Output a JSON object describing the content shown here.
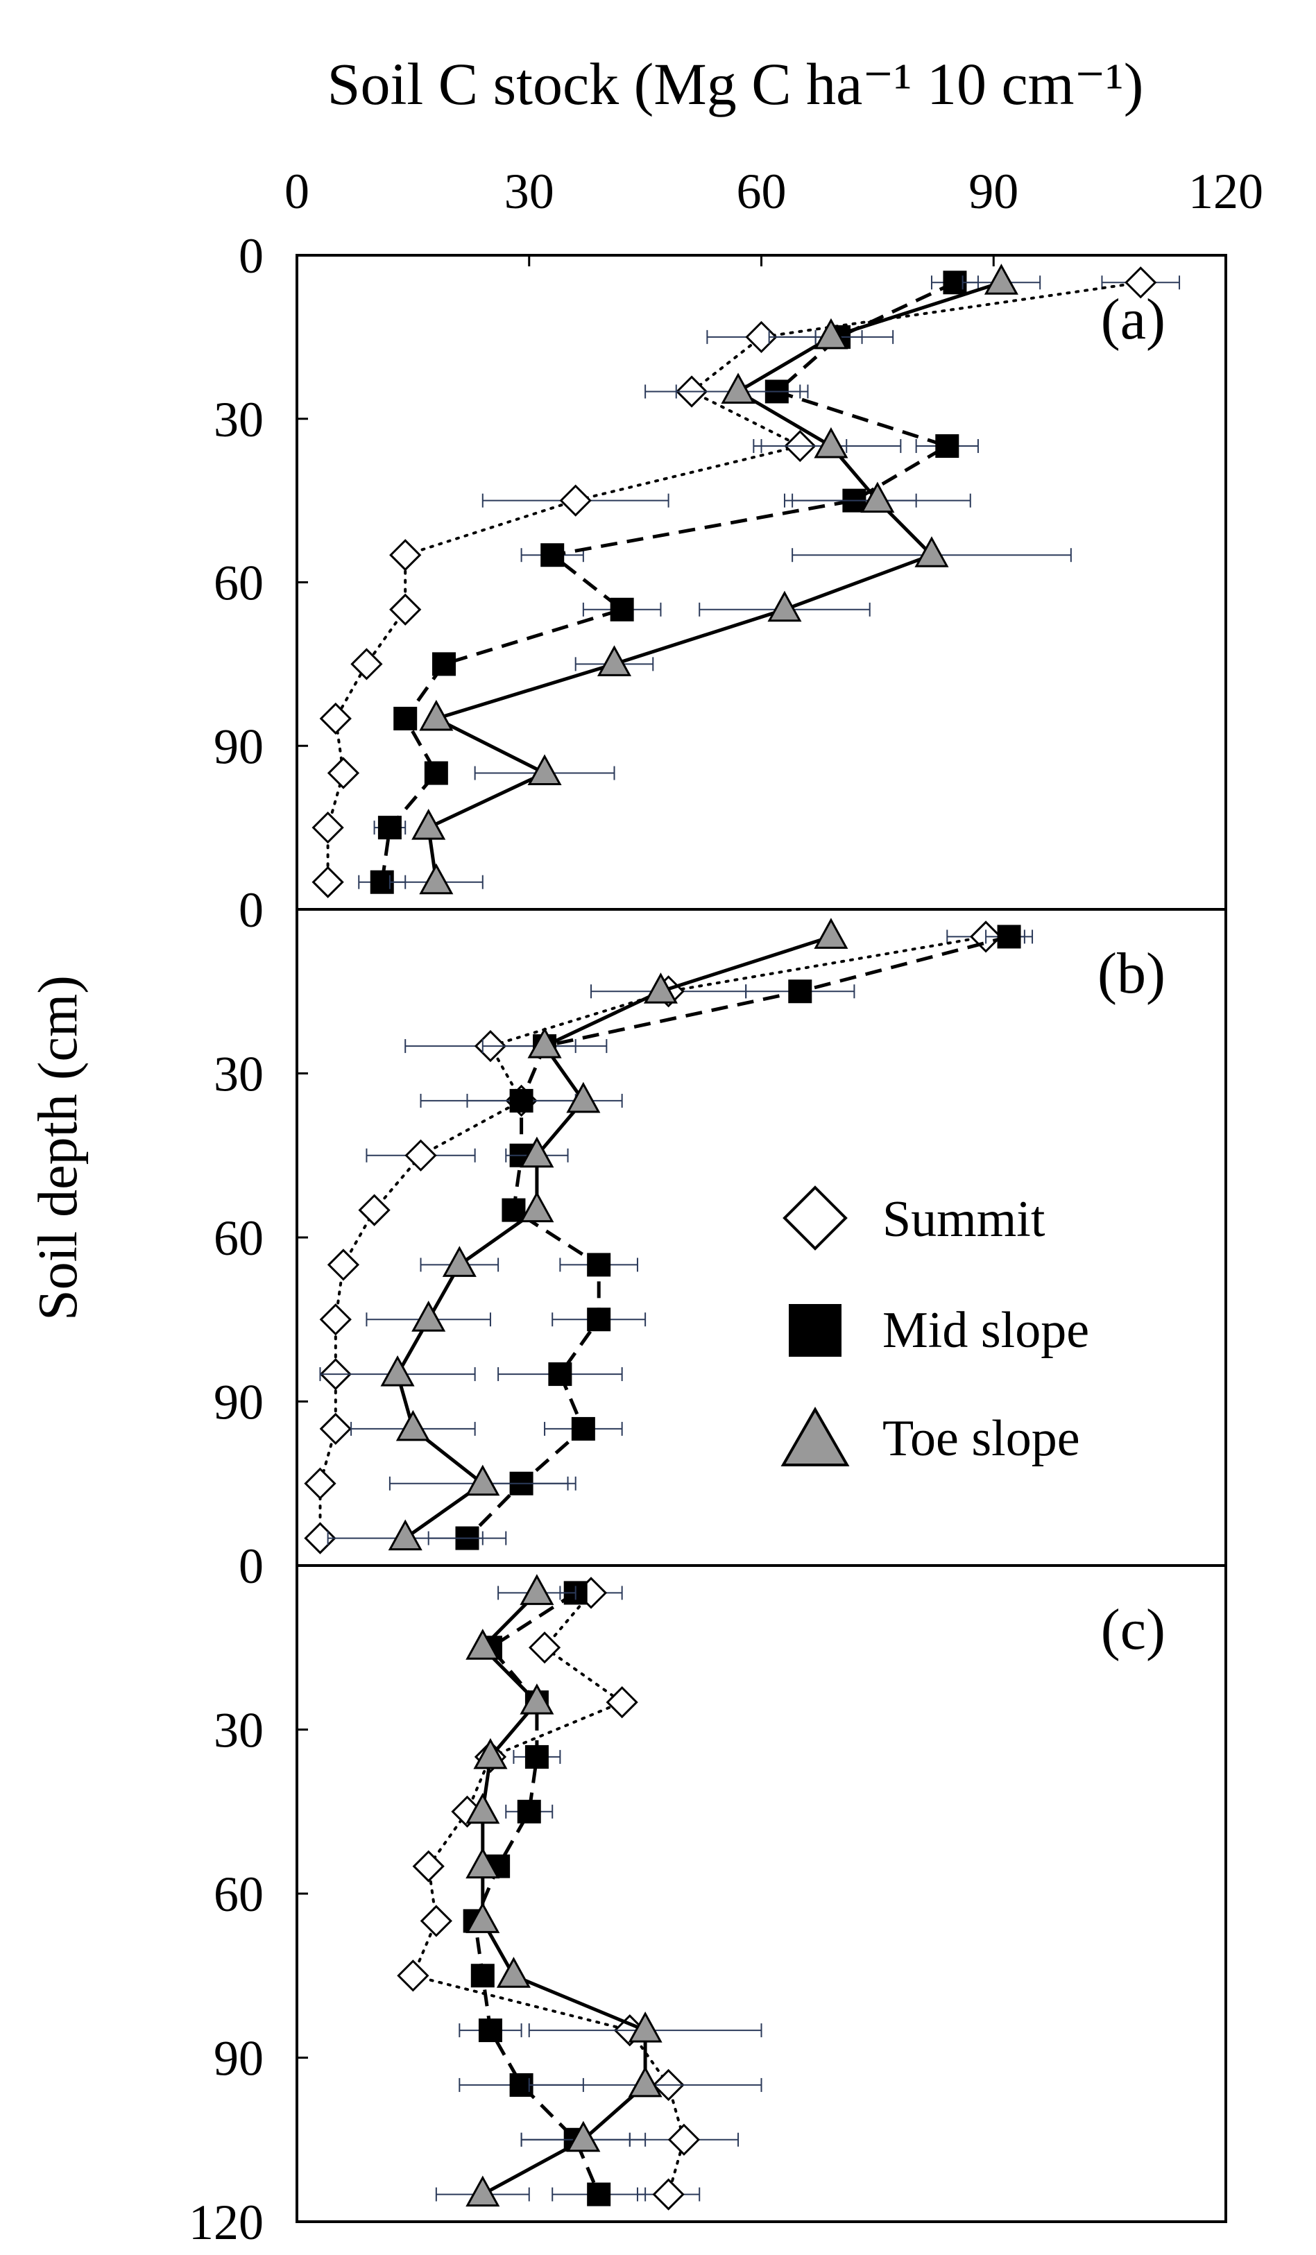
{
  "chart_data": {
    "type": "line",
    "title": "Soil C stock (Mg C ha⁻¹ 10 cm⁻¹)",
    "xlabel": "Soil C stock (Mg C ha⁻¹ 10 cm⁻¹)",
    "ylabel": "Soil depth (cm)",
    "x_ticks": [
      "0",
      "30",
      "60",
      "90",
      "120"
    ],
    "xlim": [
      0,
      120
    ],
    "ylim": [
      0,
      120
    ],
    "y_ticks_major": [
      "0",
      "30",
      "60",
      "90"
    ],
    "y_tick_bottom": "120",
    "depths": [
      5,
      15,
      25,
      35,
      45,
      55,
      65,
      75,
      85,
      95,
      105,
      115
    ],
    "legend": [
      {
        "name": "Summit",
        "marker": "diamond-open",
        "line": "dotted"
      },
      {
        "name": "Mid slope",
        "marker": "square-filled",
        "line": "dashed"
      },
      {
        "name": "Toe slope",
        "marker": "triangle-gray",
        "line": "solid"
      }
    ],
    "panels": [
      {
        "label": "(a)",
        "series": [
          {
            "name": "Summit",
            "values": [
              109,
              60,
              51,
              65,
              36,
              14,
              14,
              9,
              5,
              6,
              4,
              4
            ],
            "err": [
              5,
              7,
              6,
              6,
              12,
              0,
              0,
              0,
              0,
              0,
              0,
              0
            ]
          },
          {
            "name": "Mid slope",
            "values": [
              85,
              70,
              62,
              84,
              72,
              33,
              42,
              19,
              14,
              18,
              12,
              11
            ],
            "err": [
              3,
              3,
              4,
              4,
              8,
              4,
              5,
              0,
              0,
              0,
              2,
              3
            ]
          },
          {
            "name": "Toe slope",
            "values": [
              91,
              69,
              57,
              69,
              75,
              82,
              63,
              41,
              18,
              32,
              17,
              18
            ],
            "err": [
              5,
              8,
              8,
              9,
              12,
              18,
              11,
              5,
              0,
              9,
              0,
              6
            ]
          }
        ]
      },
      {
        "label": "(b)",
        "series": [
          {
            "name": "Summit",
            "values": [
              89,
              48,
              25,
              29,
              16,
              10,
              6,
              5,
              5,
              5,
              3,
              3
            ],
            "err": [
              5,
              10,
              11,
              13,
              7,
              0,
              0,
              0,
              0,
              0,
              0,
              0
            ]
          },
          {
            "name": "Mid slope",
            "values": [
              92,
              65,
              32,
              29,
              29,
              28,
              39,
              39,
              34,
              37,
              29,
              22
            ],
            "err": [
              3,
              7,
              8,
              7,
              0,
              0,
              5,
              6,
              8,
              5,
              6,
              5
            ]
          },
          {
            "name": "Toe slope",
            "values": [
              69,
              47,
              32,
              37,
              31,
              31,
              21,
              17,
              13,
              15,
              24,
              14
            ],
            "err": [
              0,
              0,
              0,
              0,
              4,
              0,
              5,
              8,
              10,
              8,
              12,
              10
            ]
          }
        ]
      },
      {
        "label": "(c)",
        "series": [
          {
            "name": "Summit",
            "values": [
              38,
              32,
              42,
              25,
              22,
              17,
              18,
              15,
              43,
              48,
              50,
              48
            ],
            "err": [
              4,
              0,
              0,
              0,
              0,
              0,
              0,
              0,
              0,
              0,
              7,
              4
            ]
          },
          {
            "name": "Mid slope",
            "values": [
              36,
              25,
              31,
              31,
              30,
              26,
              23,
              24,
              25,
              29,
              36,
              39
            ],
            "err": [
              0,
              0,
              0,
              3,
              3,
              0,
              0,
              0,
              4,
              8,
              7,
              6
            ]
          },
          {
            "name": "Toe slope",
            "values": [
              31,
              24,
              31,
              25,
              24,
              24,
              24,
              28,
              45,
              45,
              37,
              24
            ],
            "err": [
              5,
              0,
              0,
              0,
              0,
              0,
              0,
              0,
              15,
              15,
              8,
              6
            ]
          }
        ]
      }
    ]
  }
}
